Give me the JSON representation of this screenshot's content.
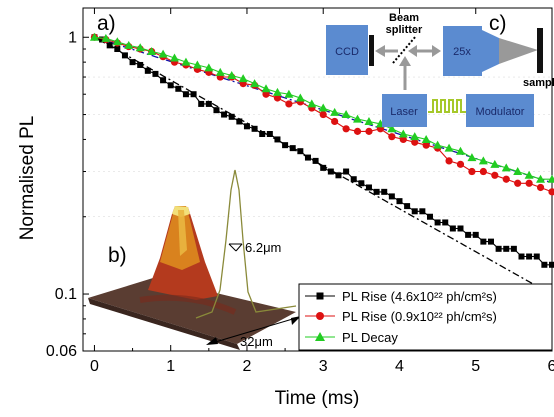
{
  "chart_data": {
    "type": "line",
    "title": "",
    "xlabel": "Time (ms)",
    "ylabel": "Normalised PL",
    "xlim": [
      -0.15,
      6.0
    ],
    "ylim": [
      0.06,
      1.3
    ],
    "yscale": "log",
    "x_ticks": [
      "0",
      "1",
      "2",
      "3",
      "4",
      "5",
      "6"
    ],
    "y_ticks": [
      "0.06",
      "0.1",
      "1"
    ],
    "legend_position": "bottom-right",
    "series": [
      {
        "name": "PL Rise (4.6x10²² ph/cm²s)",
        "color": "#000000",
        "marker": "square",
        "x": [
          0,
          0.1,
          0.2,
          0.3,
          0.4,
          0.5,
          0.6,
          0.7,
          0.8,
          0.9,
          1.0,
          1.1,
          1.2,
          1.3,
          1.4,
          1.5,
          1.6,
          1.7,
          1.8,
          1.9,
          2.0,
          2.1,
          2.2,
          2.3,
          2.4,
          2.5,
          2.6,
          2.7,
          2.8,
          2.9,
          3.0,
          3.1,
          3.2,
          3.3,
          3.4,
          3.5,
          3.6,
          3.7,
          3.8,
          3.9,
          4.0,
          4.1,
          4.2,
          4.3,
          4.4,
          4.5,
          4.6,
          4.7,
          4.8,
          4.9,
          5.0,
          5.1,
          5.2,
          5.3,
          5.4,
          5.5,
          5.6,
          5.7,
          5.8,
          5.9,
          6.0
        ],
        "y": [
          1.0,
          0.98,
          0.93,
          0.9,
          0.85,
          0.8,
          0.78,
          0.74,
          0.72,
          0.68,
          0.65,
          0.63,
          0.6,
          0.6,
          0.55,
          0.55,
          0.52,
          0.5,
          0.49,
          0.47,
          0.45,
          0.44,
          0.42,
          0.42,
          0.4,
          0.38,
          0.37,
          0.36,
          0.34,
          0.33,
          0.31,
          0.3,
          0.29,
          0.3,
          0.28,
          0.27,
          0.26,
          0.25,
          0.25,
          0.24,
          0.23,
          0.22,
          0.21,
          0.21,
          0.2,
          0.19,
          0.19,
          0.18,
          0.18,
          0.17,
          0.17,
          0.16,
          0.16,
          0.15,
          0.15,
          0.15,
          0.14,
          0.14,
          0.14,
          0.13,
          0.13
        ]
      },
      {
        "name": "PL Rise (0.9x10²² ph/cm²s)",
        "color": "#dd1111",
        "marker": "circle",
        "x": [
          0,
          0.15,
          0.3,
          0.45,
          0.6,
          0.75,
          0.9,
          1.05,
          1.2,
          1.35,
          1.5,
          1.65,
          1.8,
          1.95,
          2.1,
          2.25,
          2.4,
          2.55,
          2.7,
          2.85,
          3.0,
          3.15,
          3.3,
          3.45,
          3.6,
          3.75,
          3.9,
          4.05,
          4.2,
          4.35,
          4.5,
          4.65,
          4.8,
          4.95,
          5.1,
          5.25,
          5.4,
          5.55,
          5.7,
          5.85,
          6.0
        ],
        "y": [
          1.0,
          0.98,
          0.95,
          0.92,
          0.9,
          0.88,
          0.84,
          0.8,
          0.78,
          0.75,
          0.73,
          0.7,
          0.7,
          0.66,
          0.65,
          0.6,
          0.58,
          0.55,
          0.56,
          0.53,
          0.5,
          0.47,
          0.44,
          0.43,
          0.43,
          0.44,
          0.41,
          0.4,
          0.39,
          0.38,
          0.37,
          0.33,
          0.32,
          0.3,
          0.3,
          0.29,
          0.28,
          0.27,
          0.27,
          0.26,
          0.25
        ]
      },
      {
        "name": "PL Decay",
        "color": "#22cc22",
        "marker": "triangle",
        "x": [
          0,
          0.15,
          0.3,
          0.45,
          0.6,
          0.75,
          0.9,
          1.05,
          1.2,
          1.35,
          1.5,
          1.65,
          1.8,
          1.95,
          2.1,
          2.25,
          2.4,
          2.55,
          2.7,
          2.85,
          3.0,
          3.15,
          3.3,
          3.45,
          3.6,
          3.75,
          3.9,
          4.05,
          4.2,
          4.35,
          4.5,
          4.65,
          4.8,
          4.95,
          5.1,
          5.25,
          5.4,
          5.55,
          5.7,
          5.85,
          6.0
        ],
        "y": [
          1.0,
          0.99,
          0.96,
          0.93,
          0.91,
          0.88,
          0.86,
          0.83,
          0.8,
          0.78,
          0.76,
          0.73,
          0.71,
          0.69,
          0.66,
          0.63,
          0.61,
          0.6,
          0.58,
          0.55,
          0.53,
          0.51,
          0.5,
          0.48,
          0.47,
          0.46,
          0.44,
          0.42,
          0.41,
          0.4,
          0.38,
          0.37,
          0.36,
          0.34,
          0.33,
          0.32,
          0.31,
          0.3,
          0.29,
          0.28,
          0.28
        ]
      }
    ],
    "fits": [
      {
        "color": "#000000",
        "style": "dash-dot",
        "tau_ms": 2.6
      },
      {
        "color": "#1111aa",
        "style": "dash-dot",
        "tau_ms": 4.6
      }
    ]
  },
  "panel_labels": {
    "a": "a)",
    "b": "b)",
    "c": "c)"
  },
  "inset_b": {
    "width_label": "6.2μm",
    "length_label": "32μm"
  },
  "inset_c": {
    "ccd": "CCD",
    "beam": "Beam",
    "splitter": "splitter",
    "objective": "25x",
    "sample": "sample",
    "laser": "Laser",
    "modulator": "Modulator"
  },
  "colors": {
    "box_blue": "#5b8bd0",
    "arrow_gray": "#999999",
    "signal_green": "#a6c82a"
  }
}
